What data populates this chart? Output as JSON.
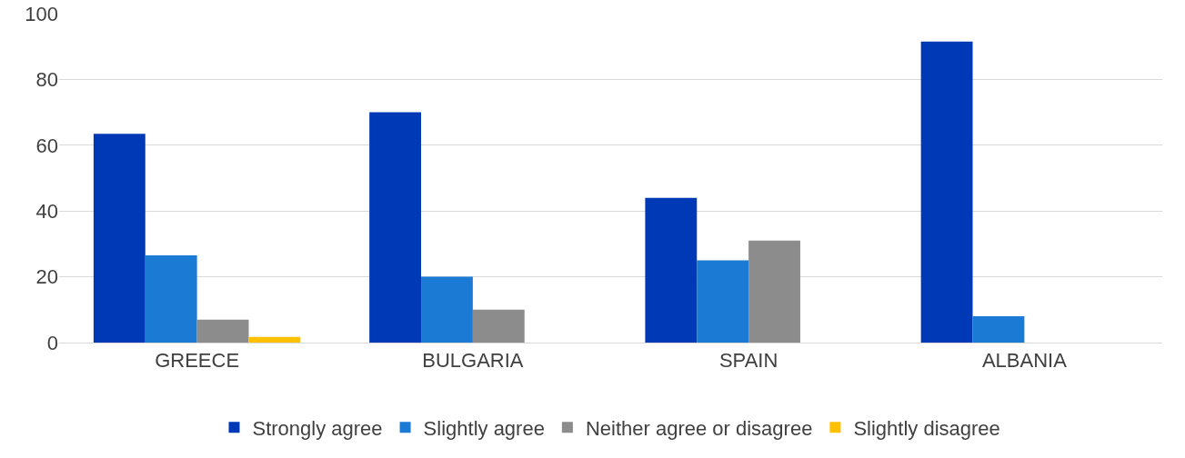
{
  "chart_data": {
    "type": "bar",
    "categories": [
      "GREECE",
      "BULGARIA",
      "SPAIN",
      "ALBANIA"
    ],
    "series": [
      {
        "name": "Strongly agree",
        "color": "#0039b5",
        "values": [
          63.5,
          70,
          44,
          91.5
        ]
      },
      {
        "name": "Slightly agree",
        "color": "#1a7ad4",
        "values": [
          26.5,
          20,
          25,
          8
        ]
      },
      {
        "name": "Neither agree or disagree",
        "color": "#8c8c8c",
        "values": [
          7,
          10,
          31,
          null
        ]
      },
      {
        "name": "Slightly disagree",
        "color": "#ffc000",
        "values": [
          1.7,
          null,
          null,
          null
        ]
      }
    ],
    "ylim": [
      0,
      100
    ],
    "yticks": [
      0,
      20,
      40,
      60,
      80,
      100
    ],
    "grid": "y",
    "legend": "bottom"
  }
}
